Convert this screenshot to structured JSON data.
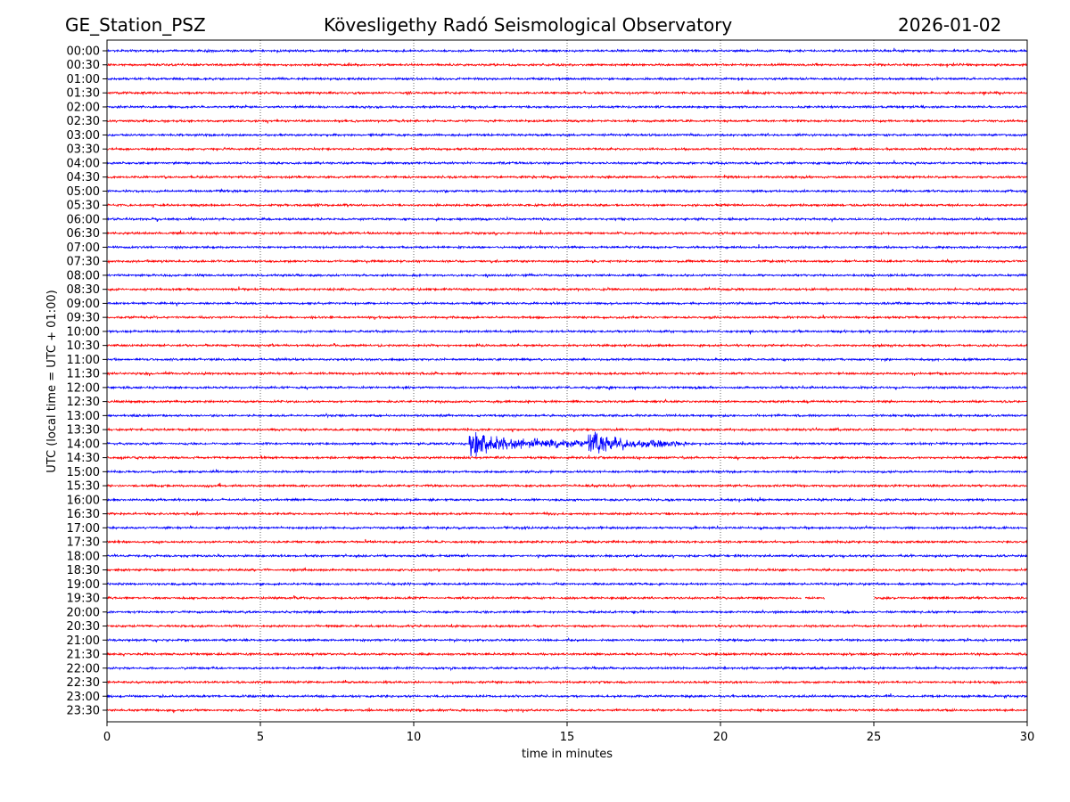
{
  "header": {
    "station": "GE_Station_PSZ",
    "observatory": "Kövesligethy Radó Seismological Observatory",
    "date": "2026-01-02"
  },
  "chart_data": {
    "type": "line",
    "title": "Kövesligethy Radó Seismological Observatory",
    "xlabel": "time in minutes",
    "ylabel": "UTC (local time = UTC + 01:00)",
    "xlim": [
      0,
      30
    ],
    "xticks": [
      0,
      5,
      10,
      15,
      20,
      25,
      30
    ],
    "grid": "vertical dotted at every 5 minutes",
    "colors": [
      "#0000ff",
      "#ff0000"
    ],
    "rows": [
      "00:00",
      "00:30",
      "01:00",
      "01:30",
      "02:00",
      "02:30",
      "03:00",
      "03:30",
      "04:00",
      "04:30",
      "05:00",
      "05:30",
      "06:00",
      "06:30",
      "07:00",
      "07:30",
      "08:00",
      "08:30",
      "09:00",
      "09:30",
      "10:00",
      "10:30",
      "11:00",
      "11:30",
      "12:00",
      "12:30",
      "13:00",
      "13:30",
      "14:00",
      "14:30",
      "15:00",
      "15:30",
      "16:00",
      "16:30",
      "17:00",
      "17:30",
      "18:00",
      "18:30",
      "19:00",
      "19:30",
      "20:00",
      "20:30",
      "21:00",
      "21:30",
      "22:00",
      "22:30",
      "23:00",
      "23:30"
    ],
    "events": [
      {
        "row": "14:00",
        "start_min": 11.8,
        "end_min": 19.5,
        "second_burst_min": 15.7
      }
    ],
    "gaps": [
      {
        "row": "19:30",
        "start_min": 22.65,
        "end_min": 22.75
      },
      {
        "row": "19:30",
        "start_min": 23.4,
        "end_min": 25.0
      }
    ]
  }
}
